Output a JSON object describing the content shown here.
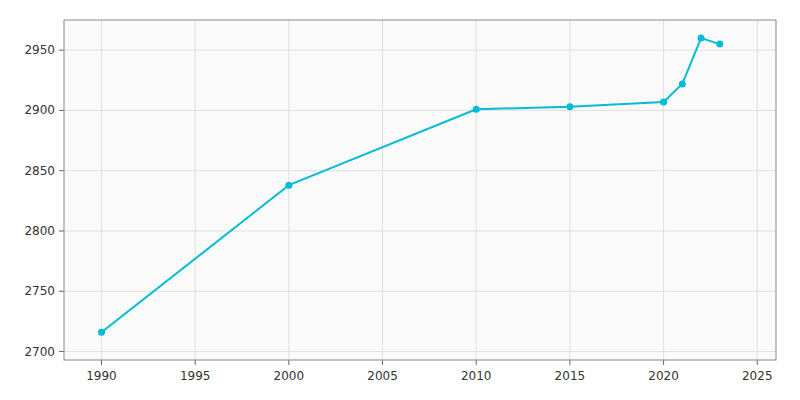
{
  "chart_data": {
    "type": "line",
    "x": [
      1990,
      2000,
      2010,
      2015,
      2020,
      2021,
      2022,
      2023
    ],
    "values": [
      2716,
      2838,
      2901,
      2903,
      2907,
      2922,
      2960,
      2955
    ],
    "color": "#00BCD4",
    "marker": "circle",
    "xlim": [
      1988,
      2026
    ],
    "ylim": [
      2693,
      2975
    ],
    "xticks": [
      1990,
      1995,
      2000,
      2005,
      2010,
      2015,
      2020,
      2025
    ],
    "yticks": [
      2700,
      2750,
      2800,
      2850,
      2900,
      2950
    ],
    "grid": true
  }
}
